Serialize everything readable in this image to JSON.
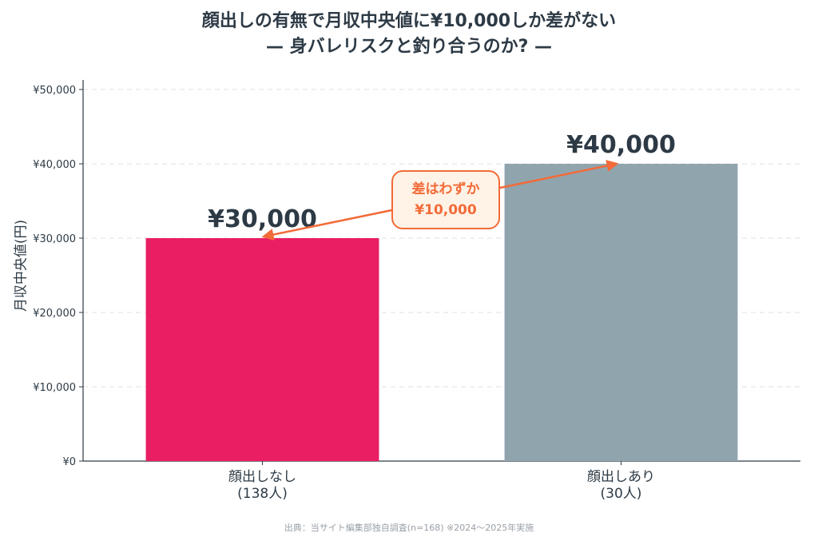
{
  "title": {
    "line1": "顔出しの有無で月収中央値に¥10,000しか差がない",
    "line2": "— 身バレリスクと釣り合うのか? —"
  },
  "callout": {
    "line1": "差はわずか",
    "line2": "¥10,000"
  },
  "source": "出典：当サイト編集部独自調査(n=168) ※2024〜2025年実施",
  "colors": {
    "bar_no_face": "#e91e63",
    "bar_face": "#90a4ae",
    "accent": "#f26b38",
    "text": "#2d3a45"
  },
  "chart_data": {
    "type": "bar",
    "categories": [
      [
        "顔出しなし",
        "(138人)"
      ],
      [
        "顔出しあり",
        "(30人)"
      ]
    ],
    "values": [
      30000,
      40000
    ],
    "data_labels": [
      "¥30,000",
      "¥40,000"
    ],
    "ylabel": "月収中央値(円)",
    "xlabel": "",
    "ylim": [
      0,
      50000
    ],
    "yticks": [
      0,
      10000,
      20000,
      30000,
      40000,
      50000
    ],
    "ytick_labels": [
      "¥0",
      "¥10,000",
      "¥20,000",
      "¥30,000",
      "¥40,000",
      "¥50,000"
    ],
    "grid": "horizontal-dashed",
    "annotation": {
      "from_category": 0,
      "to_category": 1,
      "text": "差はわずか ¥10,000"
    }
  }
}
